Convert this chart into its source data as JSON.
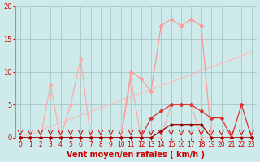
{
  "bg_color": "#ceeaea",
  "grid_color": "#aacccc",
  "xlabel": "Vent moyen/en rafales ( km/h )",
  "xlim": [
    -0.5,
    23.5
  ],
  "ylim": [
    0,
    20
  ],
  "yticks": [
    0,
    5,
    10,
    15,
    20
  ],
  "xticks": [
    0,
    1,
    2,
    3,
    4,
    5,
    6,
    7,
    8,
    9,
    10,
    11,
    12,
    13,
    14,
    15,
    16,
    17,
    18,
    19,
    20,
    21,
    22,
    23
  ],
  "trend_x": [
    0,
    23
  ],
  "trend_y": [
    0,
    13
  ],
  "trend_color": "#ffbbbb",
  "line_jagged_x": [
    0,
    1,
    2,
    3,
    4,
    5,
    6,
    7,
    8,
    9,
    10,
    11,
    12,
    13,
    14,
    15,
    16,
    17,
    18,
    19,
    20,
    21,
    22,
    23
  ],
  "line_jagged_y": [
    0,
    0,
    0,
    8,
    0,
    5,
    12,
    0,
    0,
    0,
    0,
    9,
    0,
    0,
    0,
    5,
    5,
    5,
    0,
    0,
    0,
    0,
    0,
    0
  ],
  "line_jagged_color": "#ffaaaa",
  "line_gust_x": [
    0,
    1,
    2,
    3,
    4,
    5,
    6,
    7,
    8,
    9,
    10,
    11,
    12,
    13,
    14,
    15,
    16,
    17,
    18,
    19,
    20,
    21,
    22,
    23
  ],
  "line_gust_y": [
    0,
    0,
    0,
    0,
    0,
    0,
    0,
    0,
    0,
    0,
    0,
    10,
    9,
    7,
    17,
    18,
    17,
    18,
    17,
    0,
    0,
    0,
    0,
    0
  ],
  "line_gust_color": "#ff9999",
  "line_med_x": [
    0,
    1,
    2,
    3,
    4,
    5,
    6,
    7,
    8,
    9,
    10,
    11,
    12,
    13,
    14,
    15,
    16,
    17,
    18,
    19,
    20,
    21,
    22,
    23
  ],
  "line_med_y": [
    0,
    0,
    0,
    0,
    0,
    0,
    0,
    0,
    0,
    0,
    0,
    0,
    0,
    3,
    4,
    5,
    5,
    5,
    4,
    3,
    3,
    0,
    5,
    0
  ],
  "line_med_color": "#dd3333",
  "line_dark_x": [
    0,
    1,
    2,
    3,
    4,
    5,
    6,
    7,
    8,
    9,
    10,
    11,
    12,
    13,
    14,
    15,
    16,
    17,
    18,
    19,
    20,
    21,
    22,
    23
  ],
  "line_dark_y": [
    0,
    0,
    0,
    0,
    0,
    0,
    0,
    0,
    0,
    0,
    0,
    0,
    0,
    0,
    1,
    2,
    2,
    2,
    2,
    0,
    0,
    0,
    0,
    0
  ],
  "line_dark_color": "#990000",
  "marker_style": "D",
  "marker_size": 2.0,
  "line_width": 0.9,
  "arrow_color": "#cc0000",
  "xlabel_color": "#cc0000",
  "tick_color": "#cc0000",
  "xlabel_fontsize": 7,
  "tick_fontsize_x": 5.5,
  "tick_fontsize_y": 6
}
